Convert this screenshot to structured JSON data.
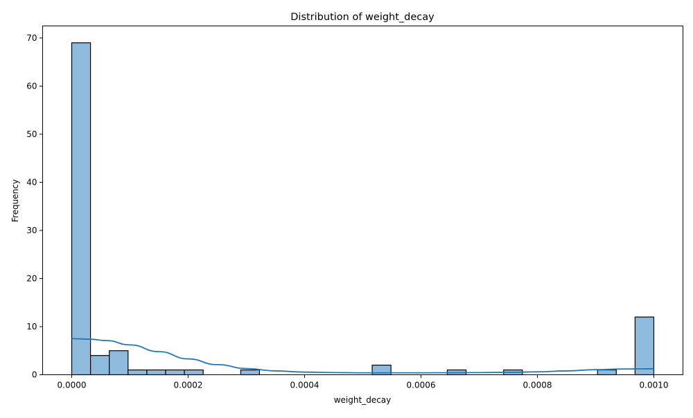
{
  "chart_data": {
    "type": "bar",
    "title": "Distribution of weight_decay",
    "xlabel": "weight_decay",
    "ylabel": "Frequency",
    "xlim": [
      -5e-05,
      0.00105
    ],
    "ylim": [
      0,
      72.5
    ],
    "grid": false,
    "legend": "none",
    "x_ticks": [
      0.0,
      0.0002,
      0.0004,
      0.0006,
      0.0008,
      0.001
    ],
    "x_tick_labels": [
      "0.0000",
      "0.0002",
      "0.0004",
      "0.0006",
      "0.0008",
      "0.0010"
    ],
    "y_ticks": [
      0,
      10,
      20,
      30,
      40,
      50,
      60,
      70
    ],
    "y_tick_labels": [
      "0",
      "10",
      "20",
      "30",
      "40",
      "50",
      "60",
      "70"
    ],
    "bins": {
      "start": 0.0,
      "end": 0.001,
      "count": 31
    },
    "counts": [
      69,
      4,
      5,
      1,
      1,
      1,
      1,
      0,
      0,
      1,
      0,
      0,
      0,
      0,
      0,
      0,
      2,
      0,
      0,
      0,
      1,
      0,
      0,
      1,
      0,
      0,
      0,
      0,
      1,
      0,
      12
    ],
    "kde": {
      "x": [
        0.0,
        3e-05,
        6e-05,
        0.0001,
        0.00015,
        0.0002,
        0.00025,
        0.0003,
        0.00035,
        0.0004,
        0.00045,
        0.0005,
        0.00055,
        0.0006,
        0.00065,
        0.0007,
        0.00075,
        0.0008,
        0.00085,
        0.0009,
        0.00095,
        0.001
      ],
      "y": [
        7.5,
        7.4,
        7.1,
        6.2,
        4.8,
        3.3,
        2.1,
        1.3,
        0.8,
        0.55,
        0.45,
        0.4,
        0.4,
        0.4,
        0.42,
        0.45,
        0.5,
        0.6,
        0.8,
        1.05,
        1.2,
        1.25
      ]
    },
    "colors": {
      "bar_fill": "#8ebbdd",
      "bar_edge": "#000000",
      "kde_line": "#1f77b4"
    }
  }
}
